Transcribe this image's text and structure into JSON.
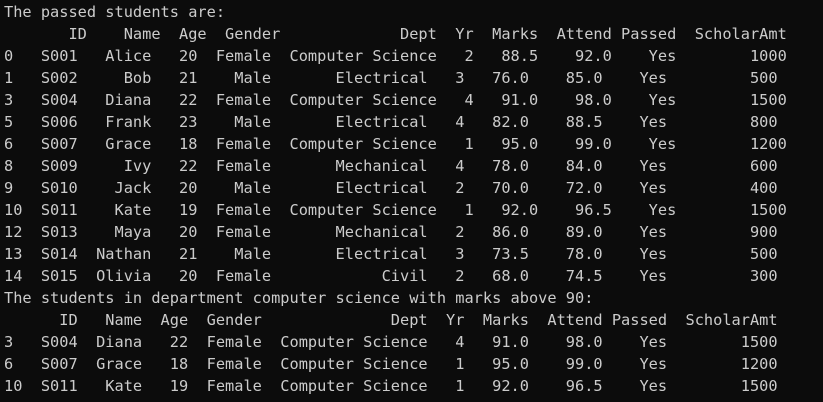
{
  "terminal": {
    "heading_passed": "The passed students are:",
    "passed_table": {
      "header": "       ID    Name  Age  Gender             Dept  Yr  Marks  Attend Passed  ScholarAmt",
      "rows": [
        "0   S001   Alice   20  Female  Computer Science   2   88.5    92.0    Yes        1000",
        "1   S002     Bob   21    Male       Electrical   3   76.0    85.0    Yes         500",
        "3   S004   Diana   22  Female  Computer Science   4   91.0    98.0    Yes        1500",
        "5   S006   Frank   23    Male       Electrical   4   82.0    88.5    Yes         800",
        "6   S007   Grace   18  Female  Computer Science   1   95.0    99.0    Yes        1200",
        "8   S009     Ivy   22  Female       Mechanical   4   78.0    84.0    Yes         600",
        "9   S010    Jack   20    Male       Electrical   2   70.0    72.0    Yes         400",
        "10  S011    Kate   19  Female  Computer Science   1   92.0    96.5    Yes        1500",
        "12  S013    Maya   20  Female       Mechanical   2   86.0    89.0    Yes         900",
        "13  S014  Nathan   21    Male       Electrical   3   73.5    78.0    Yes         500",
        "14  S015  Olivia   20  Female            Civil   2   68.0    74.5    Yes         300"
      ]
    },
    "heading_cs": "The students in department computer science with marks above 90:",
    "cs_table": {
      "header": "      ID   Name  Age  Gender              Dept  Yr  Marks  Attend Passed  ScholarAmt",
      "rows": [
        "3   S004  Diana   22  Female  Computer Science   4   91.0    98.0    Yes        1500",
        "6   S007  Grace   18  Female  Computer Science   1   95.0    99.0    Yes        1200",
        "10  S011   Kate   19  Female  Computer Science   1   92.0    96.5    Yes        1500"
      ]
    }
  }
}
